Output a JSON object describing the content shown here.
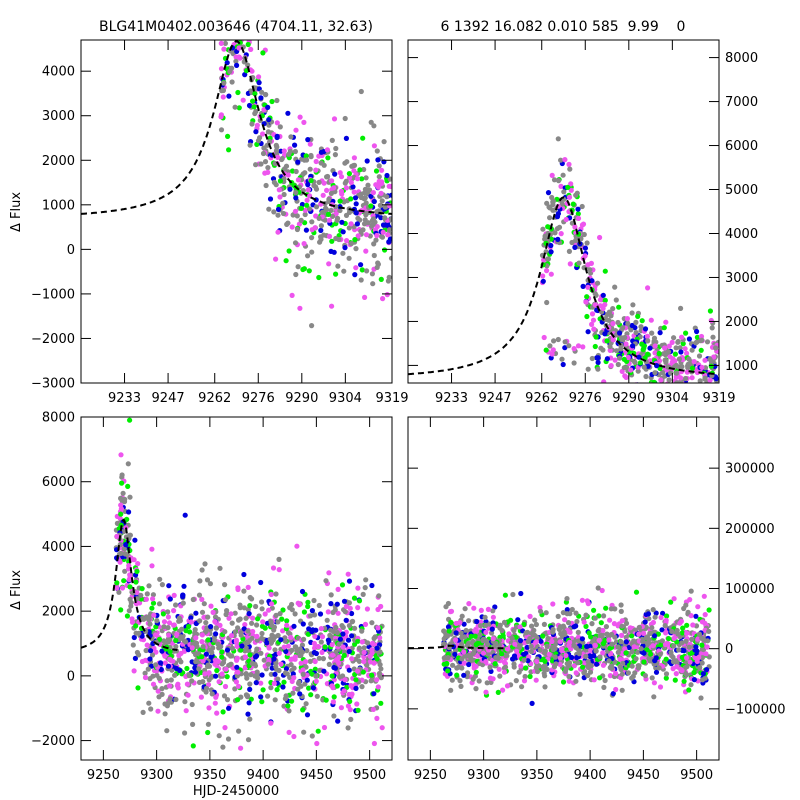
{
  "figure": {
    "title_left": "BLG41M0402.003646 (4704.11, 32.63)",
    "title_right": "6 1392 16.082 0.010 585  9.99    0",
    "ylabel": "Δ Flux",
    "xlabel": "HJD-2450000"
  },
  "colors": {
    "gray": "#888888",
    "magenta": "#ee55ee",
    "blue": "#0000dd",
    "green": "#00ee00",
    "model": "#000000"
  },
  "chart_data": [
    {
      "type": "scatter",
      "panel": "top-left",
      "xlim": [
        9219,
        9319
      ],
      "ylim": [
        -3000,
        4700
      ],
      "xticks": [
        9233,
        9247,
        9262,
        9276,
        9290,
        9304,
        9319
      ],
      "yticks": [
        -3000,
        -2000,
        -1000,
        0,
        1000,
        2000,
        3000,
        4000
      ],
      "ytick_side": "left",
      "model_peak": {
        "t0": 9269,
        "baseline": 670,
        "amplitude": 4000,
        "tau": 9
      },
      "scatter": {
        "t_start": 9264,
        "t_end": 9319,
        "scatter_sigma": 1000
      }
    },
    {
      "type": "scatter",
      "panel": "top-right",
      "xlim": [
        9219,
        9319
      ],
      "ylim": [
        600,
        8400
      ],
      "xticks": [
        9233,
        9247,
        9262,
        9276,
        9290,
        9304,
        9319
      ],
      "yticks": [
        1000,
        2000,
        3000,
        4000,
        5000,
        6000,
        7000,
        8000
      ],
      "ytick_side": "right",
      "model_peak": {
        "t0": 9269,
        "baseline": 670,
        "amplitude": 4150,
        "tau": 9
      },
      "scatter": {
        "t_start": 9262,
        "t_end": 9319,
        "scatter_sigma": 700
      }
    },
    {
      "type": "scatter",
      "panel": "bottom-left",
      "xlim": [
        9229,
        9521
      ],
      "ylim": [
        -2600,
        8000
      ],
      "xticks": [
        9250,
        9300,
        9350,
        9400,
        9450,
        9500
      ],
      "yticks": [
        -2000,
        0,
        2000,
        4000,
        6000,
        8000
      ],
      "ytick_side": "left",
      "model_peak": {
        "t0": 9269,
        "baseline": 670,
        "amplitude": 4150,
        "tau": 9
      },
      "model_end": 9320,
      "scatter": {
        "t_start": 9262,
        "t_end": 9512,
        "scatter_sigma": 1300
      }
    },
    {
      "type": "scatter",
      "panel": "bottom-right",
      "xlim": [
        9229,
        9521
      ],
      "ylim": [
        -185000,
        385000
      ],
      "xticks": [
        9250,
        9300,
        9350,
        9400,
        9450,
        9500
      ],
      "yticks": [
        -100000,
        0,
        100000,
        200000,
        300000
      ],
      "ytick_side": "right",
      "model_peak": {
        "t0": 9269,
        "baseline": 670,
        "amplitude": 4150,
        "tau": 9
      },
      "model_end": 9320,
      "scatter": {
        "t_start": 9262,
        "t_end": 9512,
        "scatter_sigma": 40000
      }
    }
  ]
}
